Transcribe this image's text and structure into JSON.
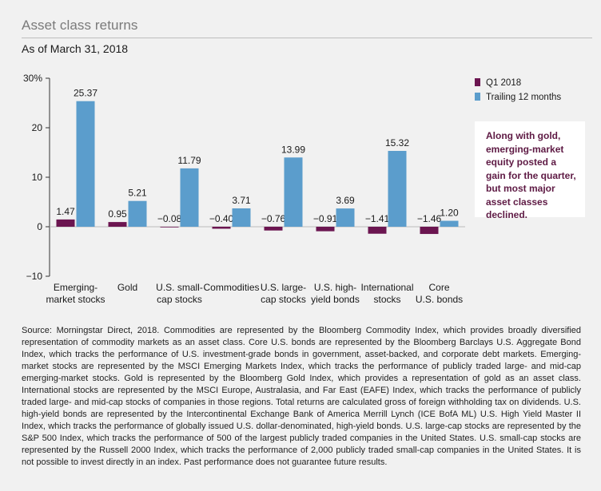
{
  "title": "Asset class returns",
  "subtitle": "As of March 31, 2018",
  "callout": "Along with gold, emerging-market equity posted a gain for the quarter, but most major asset classes declined.",
  "source": "Source: Morningstar Direct, 2018. Commodities are represented by the Bloomberg Commodity Index, which provides broadly diversified representation of commodity markets as an asset class. Core U.S. bonds are represented by the Bloomberg Barclays U.S. Aggregate Bond Index, which tracks the performance of U.S. investment-grade bonds in government, asset-backed, and corporate debt markets. Emerging-market stocks are represented by the MSCI Emerging Markets Index, which tracks the performance of publicly traded large- and mid-cap emerging-market stocks. Gold is represented by the Bloomberg Gold Index, which provides a representation of gold as an asset class. International stocks are represented by the MSCI Europe, Australasia, and Far East (EAFE) Index, which tracks the performance of publicly traded large- and mid-cap stocks of companies in those regions. Total returns are calculated gross of foreign withholding tax on dividends. U.S. high-yield bonds are represented by the Intercontinental Exchange Bank of America Merrill Lynch (ICE BofA ML) U.S. High Yield Master II Index, which tracks the performance of globally issued U.S. dollar-denominated, high-yield bonds. U.S. large-cap stocks are represented by the S&P 500 Index, which tracks the performance of 500 of the largest publicly traded companies in the United States. U.S. small-cap stocks are represented by the Russell 2000 Index, which tracks the performance of 2,000 publicly traded small-cap companies in the United States. It is not possible to invest directly in an index. Past performance does not guarantee future results.",
  "colors": {
    "q1": "#6b1550",
    "trailing": "#5b9dcc",
    "axis": "#333333",
    "grid": "#bbbbbb"
  },
  "chart_data": {
    "type": "bar",
    "title": "Asset class returns",
    "ylabel": "",
    "ylim": [
      -10,
      30
    ],
    "yticks": [
      {
        "value": -10,
        "label": "−10"
      },
      {
        "value": 0,
        "label": "0"
      },
      {
        "value": 10,
        "label": "10"
      },
      {
        "value": 20,
        "label": "20"
      },
      {
        "value": 30,
        "label": "30%"
      }
    ],
    "categories": [
      [
        "Emerging-",
        "market stocks"
      ],
      [
        "Gold"
      ],
      [
        "U.S. small-",
        "cap stocks"
      ],
      [
        "Commodities"
      ],
      [
        "U.S. large-",
        "cap stocks"
      ],
      [
        "U.S. high-",
        "yield bonds"
      ],
      [
        "International",
        "stocks"
      ],
      [
        "Core",
        "U.S. bonds"
      ]
    ],
    "legend_position": "top-right",
    "series": [
      {
        "name": "Q1 2018",
        "values": [
          1.47,
          0.95,
          -0.08,
          -0.4,
          -0.76,
          -0.91,
          -1.41,
          -1.46
        ],
        "labels": [
          "1.47",
          "0.95",
          "−0.08",
          "−0.40",
          "−0.76",
          "−0.91",
          "−1.41",
          "−1.46"
        ]
      },
      {
        "name": "Trailing 12 months",
        "values": [
          25.37,
          5.21,
          11.79,
          3.71,
          13.99,
          3.69,
          15.32,
          1.2
        ],
        "labels": [
          "25.37",
          "5.21",
          "11.79",
          "3.71",
          "13.99",
          "3.69",
          "15.32",
          "1.20"
        ]
      }
    ]
  }
}
